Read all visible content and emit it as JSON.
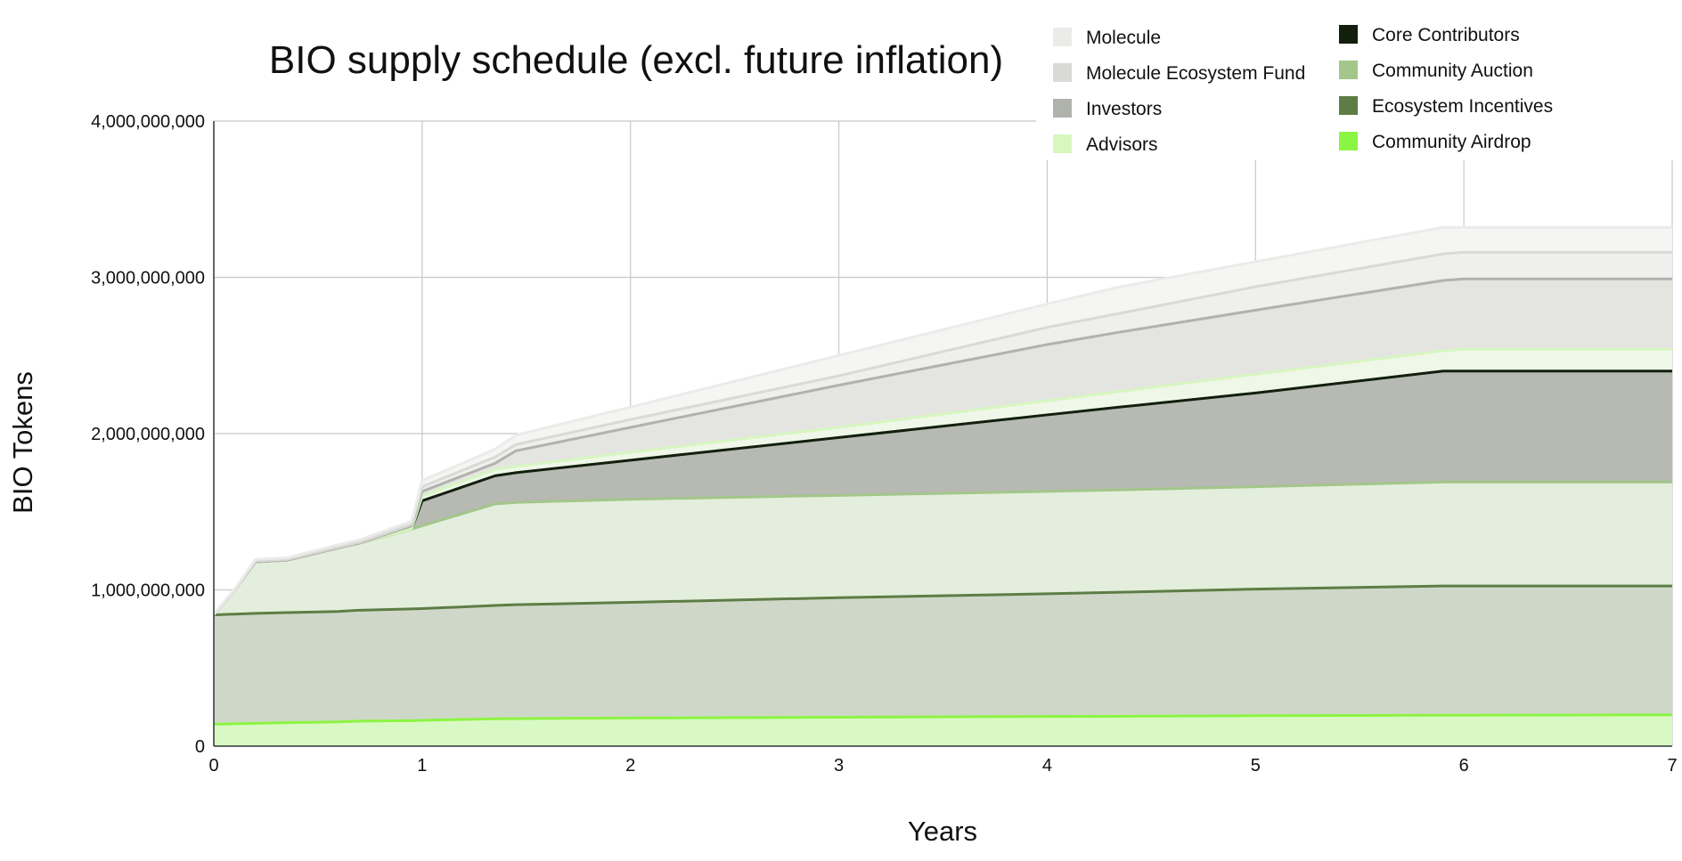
{
  "chart_data": {
    "type": "area",
    "stacked": true,
    "title": "BIO supply schedule (excl. future inflation)",
    "xlabel": "Years",
    "ylabel": "BIO Tokens",
    "xlim": [
      0,
      7
    ],
    "ylim": [
      0,
      4000000000
    ],
    "x_ticks": [
      0,
      1,
      2,
      3,
      4,
      5,
      6,
      7
    ],
    "x_tick_labels": [
      "0",
      "1",
      "2",
      "3",
      "4",
      "5",
      "6",
      "7"
    ],
    "y_ticks": [
      0,
      1000000000,
      2000000000,
      3000000000,
      4000000000
    ],
    "y_tick_labels": [
      "0",
      "1,000,000,000",
      "2,000,000,000",
      "3,000,000,000",
      "4,000,000,000"
    ],
    "grid": true,
    "legend_position": "top-right",
    "x": [
      0,
      0.1,
      0.2,
      0.35,
      0.6,
      0.7,
      0.95,
      1.0,
      1.35,
      1.45,
      2,
      3,
      4,
      4.35,
      5,
      5.9,
      6,
      7
    ],
    "series_note_cumulative": "values are cumulative stack tops in BIO tokens",
    "series": [
      {
        "name": "Community Airdrop",
        "color": "#8cf442",
        "fill": "#d9f9c4",
        "values": [
          140000000,
          143000000,
          146000000,
          150000000,
          155000000,
          160000000,
          163000000,
          165000000,
          175000000,
          176000000,
          180000000,
          185000000,
          190000000,
          191000000,
          195000000,
          198000000,
          198000000,
          200000000
        ]
      },
      {
        "name": "Ecosystem Incentives",
        "color": "#5e7d45",
        "fill": "#cfd8c8",
        "values": [
          840000000,
          845000000,
          850000000,
          855000000,
          862000000,
          870000000,
          878000000,
          880000000,
          900000000,
          905000000,
          920000000,
          950000000,
          975000000,
          985000000,
          1005000000,
          1025000000,
          1025000000,
          1025000000
        ]
      },
      {
        "name": "Community Auction",
        "color": "#a3c68a",
        "fill": "#e3eedc",
        "values": [
          840000000,
          1000000000,
          1180000000,
          1190000000,
          1270000000,
          1300000000,
          1390000000,
          1410000000,
          1550000000,
          1560000000,
          1580000000,
          1605000000,
          1630000000,
          1640000000,
          1660000000,
          1690000000,
          1690000000,
          1690000000
        ]
      },
      {
        "name": "Core Contributors",
        "color": "#111f0c",
        "fill": "#b7b9b3",
        "values": [
          840000000,
          1000000000,
          1180000000,
          1190000000,
          1270000000,
          1300000000,
          1390000000,
          1570000000,
          1730000000,
          1750000000,
          1830000000,
          1975000000,
          2120000000,
          2170000000,
          2260000000,
          2400000000,
          2400000000,
          2400000000
        ]
      },
      {
        "name": "Advisors",
        "color": "#d6f7c0",
        "fill": "#eff7e9",
        "values": [
          840000000,
          1000000000,
          1180000000,
          1190000000,
          1270000000,
          1300000000,
          1390000000,
          1600000000,
          1770000000,
          1790000000,
          1880000000,
          2040000000,
          2210000000,
          2270000000,
          2380000000,
          2530000000,
          2540000000,
          2540000000
        ]
      },
      {
        "name": "Investors",
        "color": "#b0b3ab",
        "fill": "#e4e5e1",
        "values": [
          840000000,
          1000000000,
          1180000000,
          1190000000,
          1270000000,
          1300000000,
          1410000000,
          1630000000,
          1810000000,
          1890000000,
          2040000000,
          2310000000,
          2570000000,
          2650000000,
          2790000000,
          2980000000,
          2990000000,
          2990000000
        ]
      },
      {
        "name": "Molecule Ecosystem Fund",
        "color": "#d9d9d7",
        "fill": "#efefee",
        "values": [
          840000000,
          1000000000,
          1185000000,
          1195000000,
          1275000000,
          1305000000,
          1420000000,
          1660000000,
          1850000000,
          1930000000,
          2090000000,
          2370000000,
          2680000000,
          2770000000,
          2940000000,
          3150000000,
          3160000000,
          3160000000
        ]
      },
      {
        "name": "Molecule",
        "color": "#ebebea",
        "fill": "#f5f5f4",
        "values": [
          845000000,
          1005000000,
          1195000000,
          1205000000,
          1290000000,
          1320000000,
          1440000000,
          1700000000,
          1900000000,
          1990000000,
          2170000000,
          2500000000,
          2830000000,
          2940000000,
          3100000000,
          3320000000,
          3320000000,
          3320000000
        ]
      }
    ]
  },
  "legend": {
    "left": [
      {
        "label": "Molecule",
        "color": "#ebebea"
      },
      {
        "label": "Molecule Ecosystem Fund",
        "color": "#d9d9d7"
      },
      {
        "label": "Investors",
        "color": "#b0b3ab"
      },
      {
        "label": "Advisors",
        "color": "#d6f7c0"
      }
    ],
    "right": [
      {
        "label": "Core Contributors",
        "color": "#111f0c"
      },
      {
        "label": "Community Auction",
        "color": "#a3c68a"
      },
      {
        "label": "Ecosystem Incentives",
        "color": "#5e7d45"
      },
      {
        "label": "Community Airdrop",
        "color": "#8cf442"
      }
    ]
  }
}
